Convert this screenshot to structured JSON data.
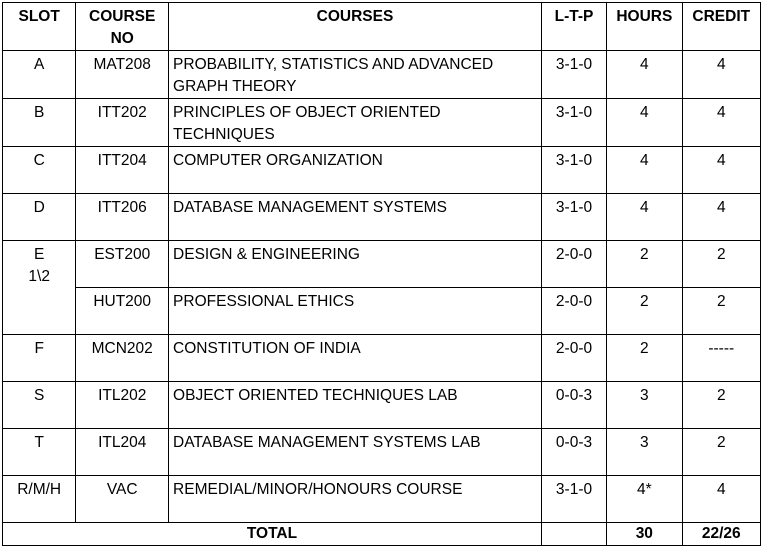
{
  "headers": {
    "slot": "SLOT",
    "course_no_line1": "COURSE",
    "course_no_line2": "NO",
    "courses": "COURSES",
    "ltp": "L-T-P",
    "hours": "HOURS",
    "credit": "CREDIT"
  },
  "rows": [
    {
      "slot": "A",
      "no": "MAT208",
      "course": "PROBABILITY, STATISTICS AND ADVANCED GRAPH THEORY",
      "ltp": "3-1-0",
      "hours": "4",
      "credit": "4"
    },
    {
      "slot": "B",
      "no": "ITT202",
      "course": "PRINCIPLES OF OBJECT ORIENTED TECHNIQUES",
      "ltp": "3-1-0",
      "hours": "4",
      "credit": "4"
    },
    {
      "slot": "C",
      "no": "ITT204",
      "course": "COMPUTER ORGANIZATION",
      "ltp": "3-1-0",
      "hours": "4",
      "credit": "4"
    },
    {
      "slot": "D",
      "no": "ITT206",
      "course": "DATABASE MANAGEMENT SYSTEMS",
      "ltp": "3-1-0",
      "hours": "4",
      "credit": "4"
    },
    {
      "slot_line1": "E",
      "slot_line2": "1\\2",
      "no": "EST200",
      "course": "DESIGN & ENGINEERING",
      "ltp": "2-0-0",
      "hours": "2",
      "credit": "2"
    },
    {
      "no": "HUT200",
      "course": "PROFESSIONAL ETHICS",
      "ltp": "2-0-0",
      "hours": "2",
      "credit": "2"
    },
    {
      "slot": "F",
      "no": "MCN202",
      "course": "CONSTITUTION OF INDIA",
      "ltp": "2-0-0",
      "hours": "2",
      "credit": "-----"
    },
    {
      "slot": "S",
      "no": "ITL202",
      "course": "OBJECT ORIENTED TECHNIQUES LAB",
      "ltp": "0-0-3",
      "hours": "3",
      "credit": "2"
    },
    {
      "slot": "T",
      "no": "ITL204",
      "course": "DATABASE MANAGEMENT SYSTEMS LAB",
      "ltp": "0-0-3",
      "hours": "3",
      "credit": "2"
    },
    {
      "slot": "R/M/H",
      "no": "VAC",
      "course": "REMEDIAL/MINOR/HONOURS COURSE",
      "ltp": "3-1-0",
      "hours": "4*",
      "credit": "4"
    }
  ],
  "total": {
    "label": "TOTAL",
    "hours": "30",
    "credit": "22/26"
  }
}
